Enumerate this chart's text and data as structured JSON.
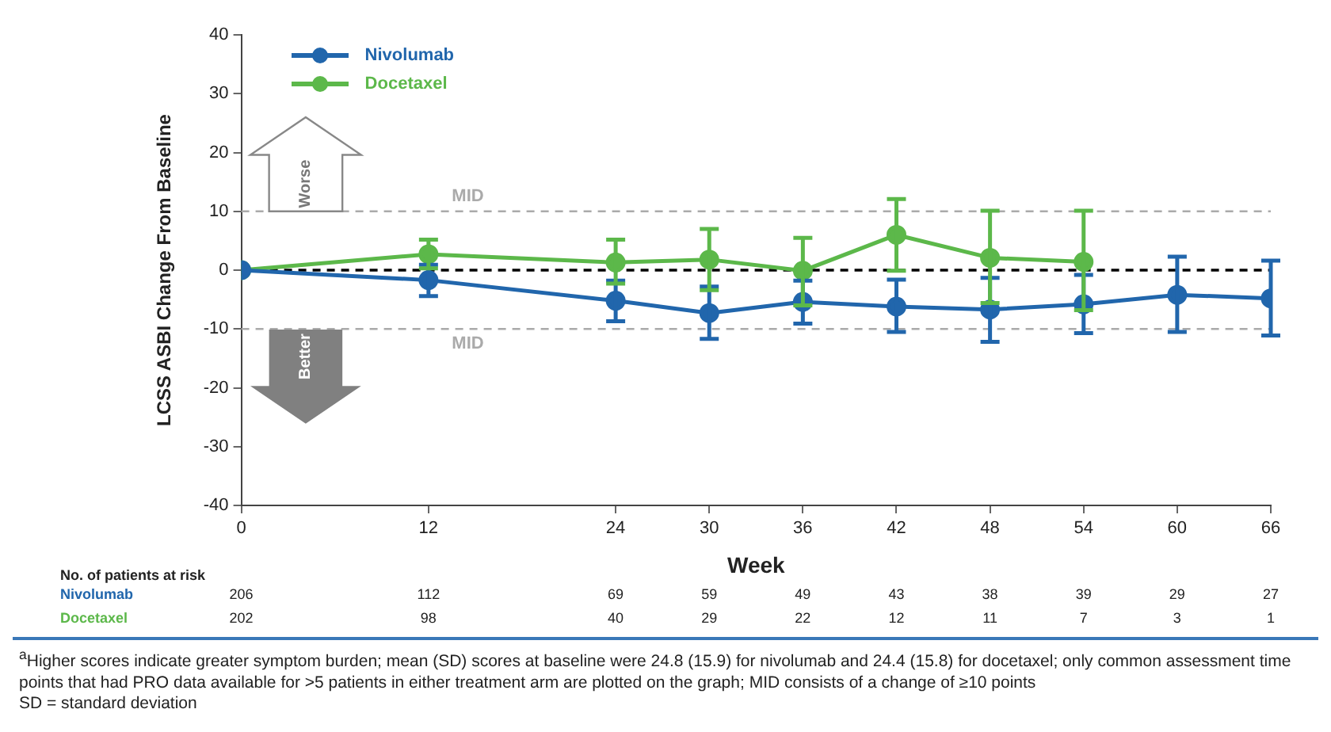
{
  "chart_data": {
    "type": "line",
    "xlabel": "Week",
    "ylabel": "LCSS ASBI Change From Baseline",
    "xlim": [
      0,
      66
    ],
    "xticks": [
      0,
      12,
      24,
      30,
      36,
      42,
      48,
      54,
      60,
      66
    ],
    "ylim": [
      -40,
      40
    ],
    "yticks": [
      -40,
      -30,
      -20,
      -10,
      0,
      10,
      20,
      30,
      40
    ],
    "grid": false,
    "legend": "top left",
    "marker": "circle",
    "line_style": "solid",
    "series": [
      {
        "name": "Nivolumab",
        "color": "#2166ac",
        "x": [
          0,
          12,
          24,
          30,
          36,
          42,
          48,
          54,
          60,
          66
        ],
        "values": [
          0,
          -1.7,
          -5.2,
          -7.3,
          -5.4,
          -6.2,
          -6.7,
          -5.8,
          -4.2,
          -4.8
        ],
        "errors": [
          null,
          [
            -4.4,
            0.9
          ],
          [
            -8.7,
            -1.8
          ],
          [
            -11.7,
            -2.8
          ],
          [
            -9.1,
            -1.8
          ],
          [
            -10.5,
            -1.6
          ],
          [
            -12.2,
            -1.3
          ],
          [
            -10.7,
            -0.8
          ],
          [
            -10.5,
            2.3
          ],
          [
            -11.1,
            1.6
          ]
        ]
      },
      {
        "name": "Docetaxel",
        "color": "#5cb84a",
        "x": [
          0,
          12,
          24,
          30,
          36,
          42,
          48,
          54
        ],
        "values": [
          0,
          2.7,
          1.3,
          1.8,
          -0.1,
          6.0,
          2.1,
          1.4
        ],
        "errors": [
          null,
          [
            0.3,
            5.2
          ],
          [
            -2.3,
            5.2
          ],
          [
            -3.4,
            7.0
          ],
          [
            -6.0,
            5.5
          ],
          [
            -0.1,
            12.1
          ],
          [
            -5.6,
            10.1
          ],
          [
            -6.8,
            10.1
          ]
        ]
      }
    ],
    "ref_lines": [
      {
        "axis": "y",
        "value": 10,
        "label": "MID",
        "color": "#aaaaaa",
        "line_style": "dashed"
      },
      {
        "axis": "y",
        "value": -10,
        "label": "MID",
        "color": "#aaaaaa",
        "line_style": "dashed"
      },
      {
        "axis": "y",
        "value": 0,
        "label": null,
        "color": "#000000",
        "line_style": "dashed"
      }
    ],
    "annotations": [
      "Worse",
      "Better",
      "No. of patients at risk",
      "206",
      "112",
      "69",
      "59",
      "49",
      "43",
      "38",
      "39",
      "29",
      "27",
      "202",
      "98",
      "40",
      "29",
      "22",
      "12",
      "11",
      "7",
      "3",
      "1",
      "$^{a}$Higher scores indicate greater symptom burden; mean (SD) scores at baseline were 24.8 (15.9) for nivolumab and 24.4 (15.8) for docetaxel; only common assessment time points that had PRO data available for >5 patients in either treatment arm are plotted on the graph; MID consists of a change of ≥10 points",
      "SD = standard deviation"
    ]
  }
}
